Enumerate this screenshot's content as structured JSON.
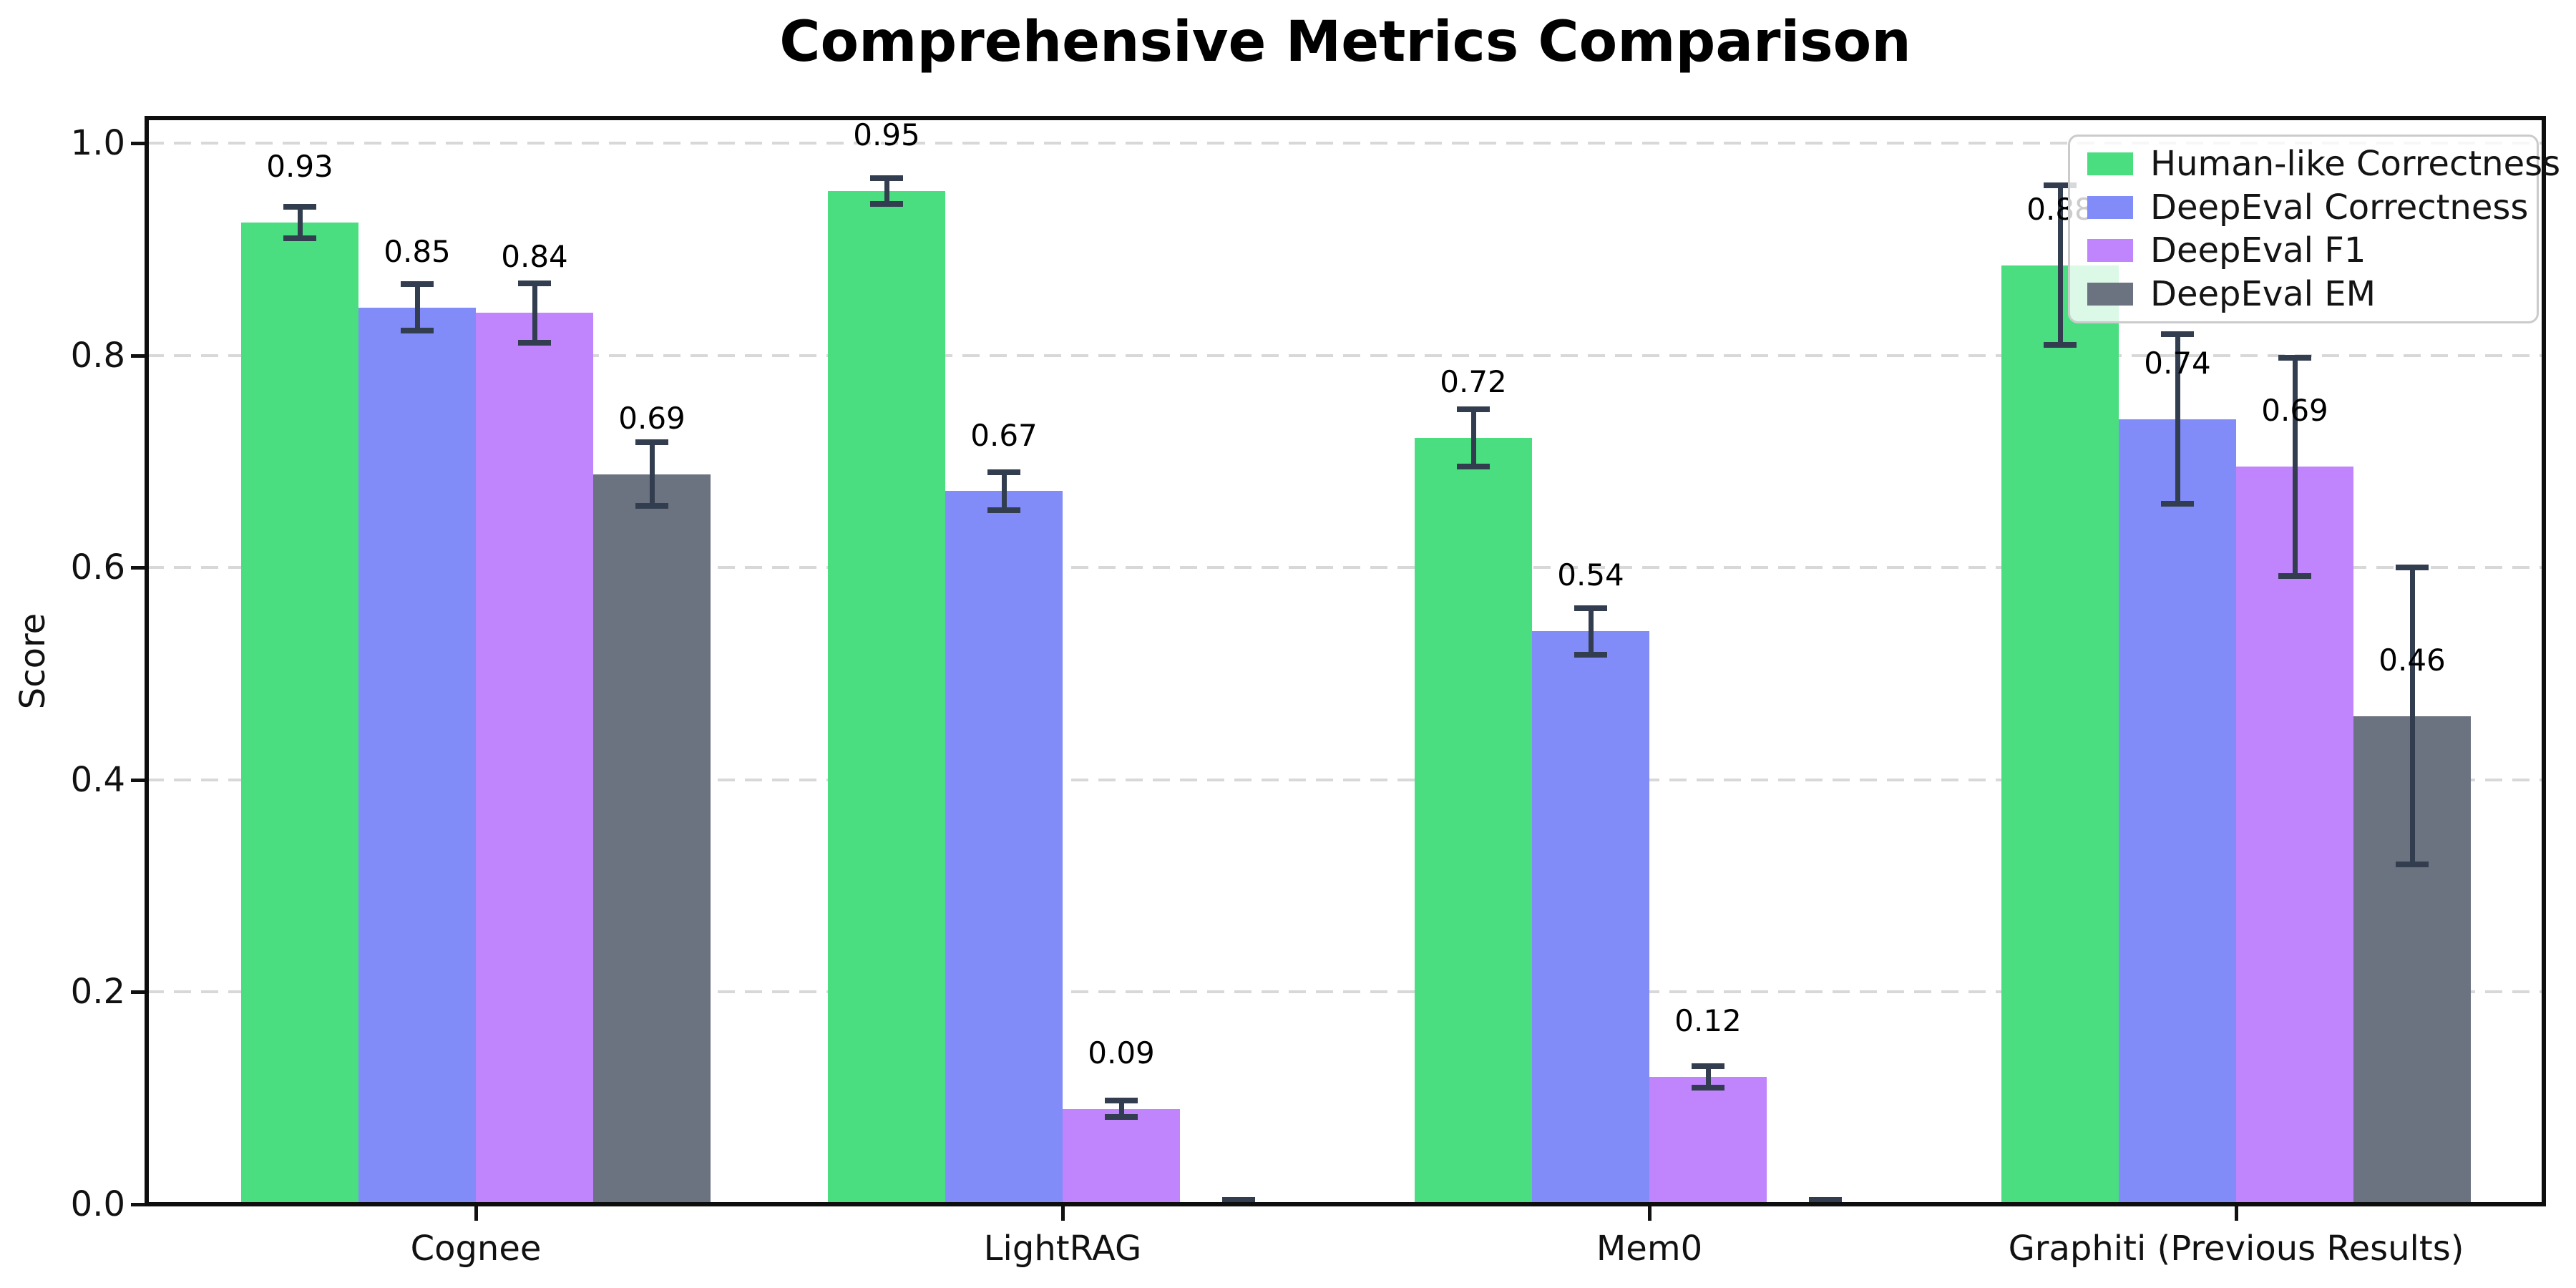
{
  "chart_data": {
    "type": "bar",
    "title": "Comprehensive Metrics Comparison",
    "xlabel": "",
    "ylabel": "Score",
    "categories": [
      "Cognee",
      "LightRAG",
      "Mem0",
      "Graphiti (Previous Results)"
    ],
    "series": [
      {
        "name": "Human-like Correctness",
        "color": "#4ade80",
        "values": [
          0.93,
          0.95,
          0.72,
          0.88
        ],
        "bar_heights": [
          0.925,
          0.955,
          0.722,
          0.885
        ],
        "errors": [
          0.015,
          0.012,
          0.027,
          0.075
        ],
        "labels": [
          "0.93",
          "0.95",
          "0.72",
          "0.88"
        ]
      },
      {
        "name": "DeepEval Correctness",
        "color": "#818cf8",
        "values": [
          0.85,
          0.67,
          0.54,
          0.74
        ],
        "bar_heights": [
          0.845,
          0.672,
          0.54,
          0.74
        ],
        "errors": [
          0.022,
          0.018,
          0.022,
          0.08
        ],
        "labels": [
          "0.85",
          "0.67",
          "0.54",
          "0.74"
        ]
      },
      {
        "name": "DeepEval F1",
        "color": "#c084fc",
        "values": [
          0.84,
          0.09,
          0.12,
          0.69
        ],
        "bar_heights": [
          0.84,
          0.09,
          0.12,
          0.695
        ],
        "errors": [
          0.028,
          0.008,
          0.01,
          0.103
        ],
        "labels": [
          "0.84",
          "0.09",
          "0.12",
          "0.69"
        ]
      },
      {
        "name": "DeepEval EM",
        "color": "#6b7280",
        "values": [
          0.69,
          0.0,
          0.0,
          0.46
        ],
        "bar_heights": [
          0.688,
          0.0,
          0.0,
          0.46
        ],
        "errors": [
          0.03,
          0.004,
          0.004,
          0.14
        ],
        "labels": [
          "0.69",
          "",
          "",
          "0.46"
        ]
      }
    ],
    "y_ticks": [
      "0.0",
      "0.2",
      "0.4",
      "0.6",
      "0.8",
      "1.0"
    ],
    "ylim": [
      0.0,
      1.07
    ],
    "grid": "horizontal-dashed",
    "grid_color": "#d8d8d8",
    "legend_position": "upper-right",
    "error_bar_color": "#323e4f",
    "axis_color": "#0e0e0e"
  }
}
